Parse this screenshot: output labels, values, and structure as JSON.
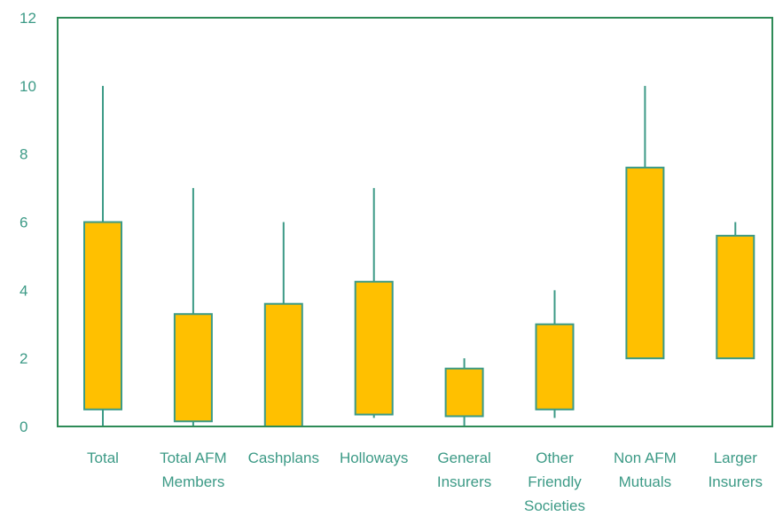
{
  "chart_data": {
    "type": "box",
    "categories": [
      [
        "Total"
      ],
      [
        "Total AFM",
        "Members"
      ],
      [
        "Cashplans"
      ],
      [
        "Holloways"
      ],
      [
        "General",
        "Insurers"
      ],
      [
        "Other",
        "Friendly",
        "Societies"
      ],
      [
        "Non AFM",
        "Mutuals"
      ],
      [
        "Larger",
        "Insurers"
      ]
    ],
    "boxes": [
      {
        "min": 0.0,
        "q1": 0.5,
        "q3": 6.0,
        "max": 10.0
      },
      {
        "min": 0.0,
        "q1": 0.15,
        "q3": 3.3,
        "max": 7.0
      },
      {
        "min": 0.0,
        "q1": 0.0,
        "q3": 3.6,
        "max": 6.0
      },
      {
        "min": 0.25,
        "q1": 0.35,
        "q3": 4.25,
        "max": 7.0
      },
      {
        "min": 0.0,
        "q1": 0.3,
        "q3": 1.7,
        "max": 2.0
      },
      {
        "min": 0.25,
        "q1": 0.5,
        "q3": 3.0,
        "max": 4.0
      },
      {
        "min": 2.0,
        "q1": 2.0,
        "q3": 7.6,
        "max": 10.0
      },
      {
        "min": 2.0,
        "q1": 2.0,
        "q3": 5.6,
        "max": 6.0
      }
    ],
    "y_ticks": [
      0,
      2,
      4,
      6,
      8,
      10,
      12
    ],
    "ylim": [
      0,
      12
    ],
    "title": "",
    "xlabel": "",
    "ylabel": "",
    "grid": false,
    "colors": {
      "box_fill": "#FFC000",
      "box_stroke": "#3C9A86",
      "whisker": "#3C9A86",
      "axis": "#2E8B57",
      "frame": "#2E8B57",
      "label": "#3C9A86"
    }
  }
}
